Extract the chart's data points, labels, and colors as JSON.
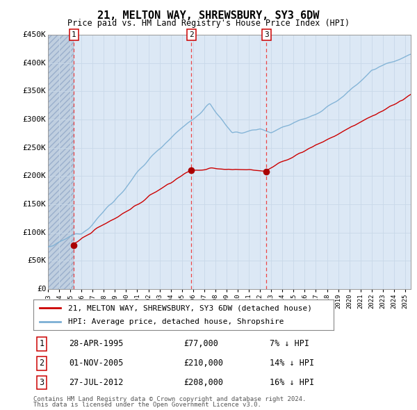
{
  "title": "21, MELTON WAY, SHREWSBURY, SY3 6DW",
  "subtitle": "Price paid vs. HM Land Registry's House Price Index (HPI)",
  "legend_line1": "21, MELTON WAY, SHREWSBURY, SY3 6DW (detached house)",
  "legend_line2": "HPI: Average price, detached house, Shropshire",
  "footer1": "Contains HM Land Registry data © Crown copyright and database right 2024.",
  "footer2": "This data is licensed under the Open Government Licence v3.0.",
  "transactions": [
    {
      "num": 1,
      "date_str": "28-APR-1995",
      "price": 77000,
      "pct": "7%",
      "year_x": 1995.32
    },
    {
      "num": 2,
      "date_str": "01-NOV-2005",
      "price": 210000,
      "pct": "14%",
      "year_x": 2005.83
    },
    {
      "num": 3,
      "date_str": "27-JUL-2012",
      "price": 208000,
      "pct": "16%",
      "year_x": 2012.57
    }
  ],
  "ylim": [
    0,
    450000
  ],
  "yticks": [
    0,
    50000,
    100000,
    150000,
    200000,
    250000,
    300000,
    350000,
    400000,
    450000
  ],
  "ytick_labels": [
    "£0",
    "£50K",
    "£100K",
    "£150K",
    "£200K",
    "£250K",
    "£300K",
    "£350K",
    "£400K",
    "£450K"
  ],
  "xlim_start": 1993.0,
  "xlim_end": 2025.5,
  "hpi_color": "#7bafd4",
  "price_color": "#cc0000",
  "dashed_color": "#ee3333",
  "plot_bg": "#dce8f5",
  "hatch_bg": "#c0cfe0",
  "grid_color": "#c8d8e8",
  "transaction_marker_color": "#aa0000",
  "box_edge_color": "#cc0000",
  "legend_border_color": "#888888"
}
